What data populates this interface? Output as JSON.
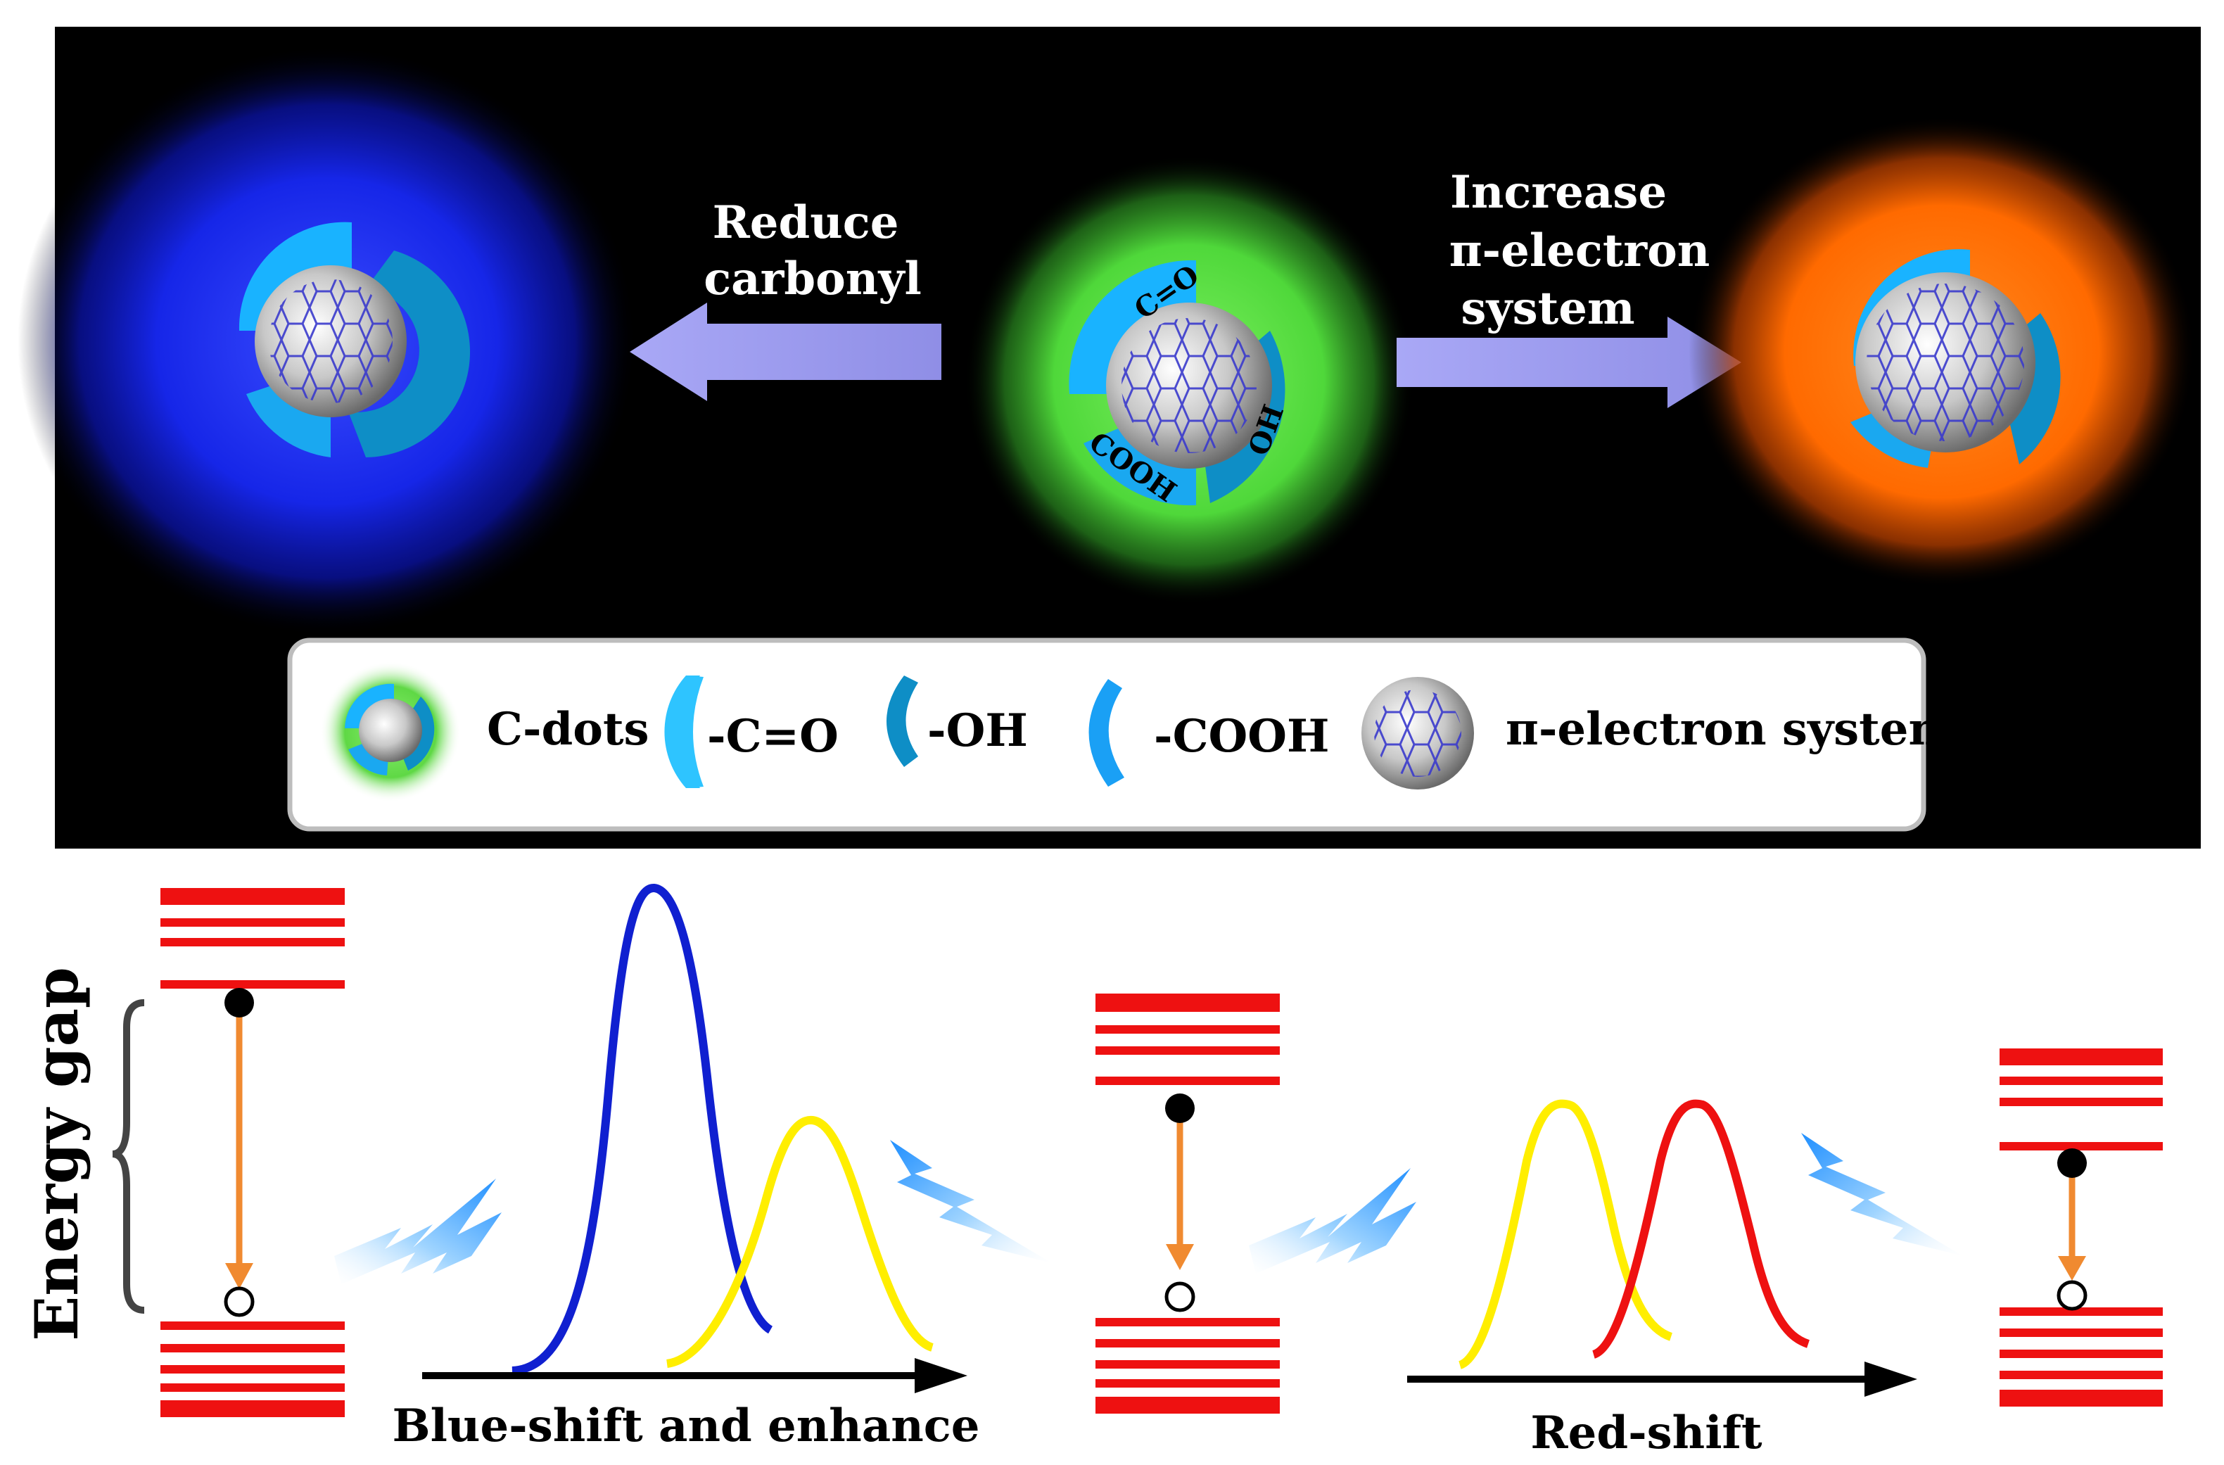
{
  "top_panel": {
    "labels": {
      "reduce_line1": "Reduce",
      "reduce_line2": "carbonyl",
      "increase_line1": "Increase",
      "increase_line2": "π-electron",
      "increase_line3": "system"
    },
    "dot_group_labels": {
      "c_o": "C=O",
      "oh": "OH",
      "cooh": "COOH"
    },
    "glow_colors": {
      "left": "#1f2bff",
      "center": "#4fd83a",
      "right": "#ff6a00"
    }
  },
  "legend": {
    "cdots": "C-dots",
    "c_o": "-C=O",
    "oh": "-OH",
    "cooh": "-COOH",
    "pi": "π-electron system"
  },
  "bottom_panel": {
    "energy_gap": "Energy gap",
    "blue_shift": "Blue-shift and enhance",
    "red_shift": "Red-shift",
    "curve_colors": {
      "blue": "#1020d0",
      "yellow": "#ffee00",
      "red": "#ee1111"
    },
    "level_color": "#ee1111",
    "transition_color": "#f08a30"
  }
}
